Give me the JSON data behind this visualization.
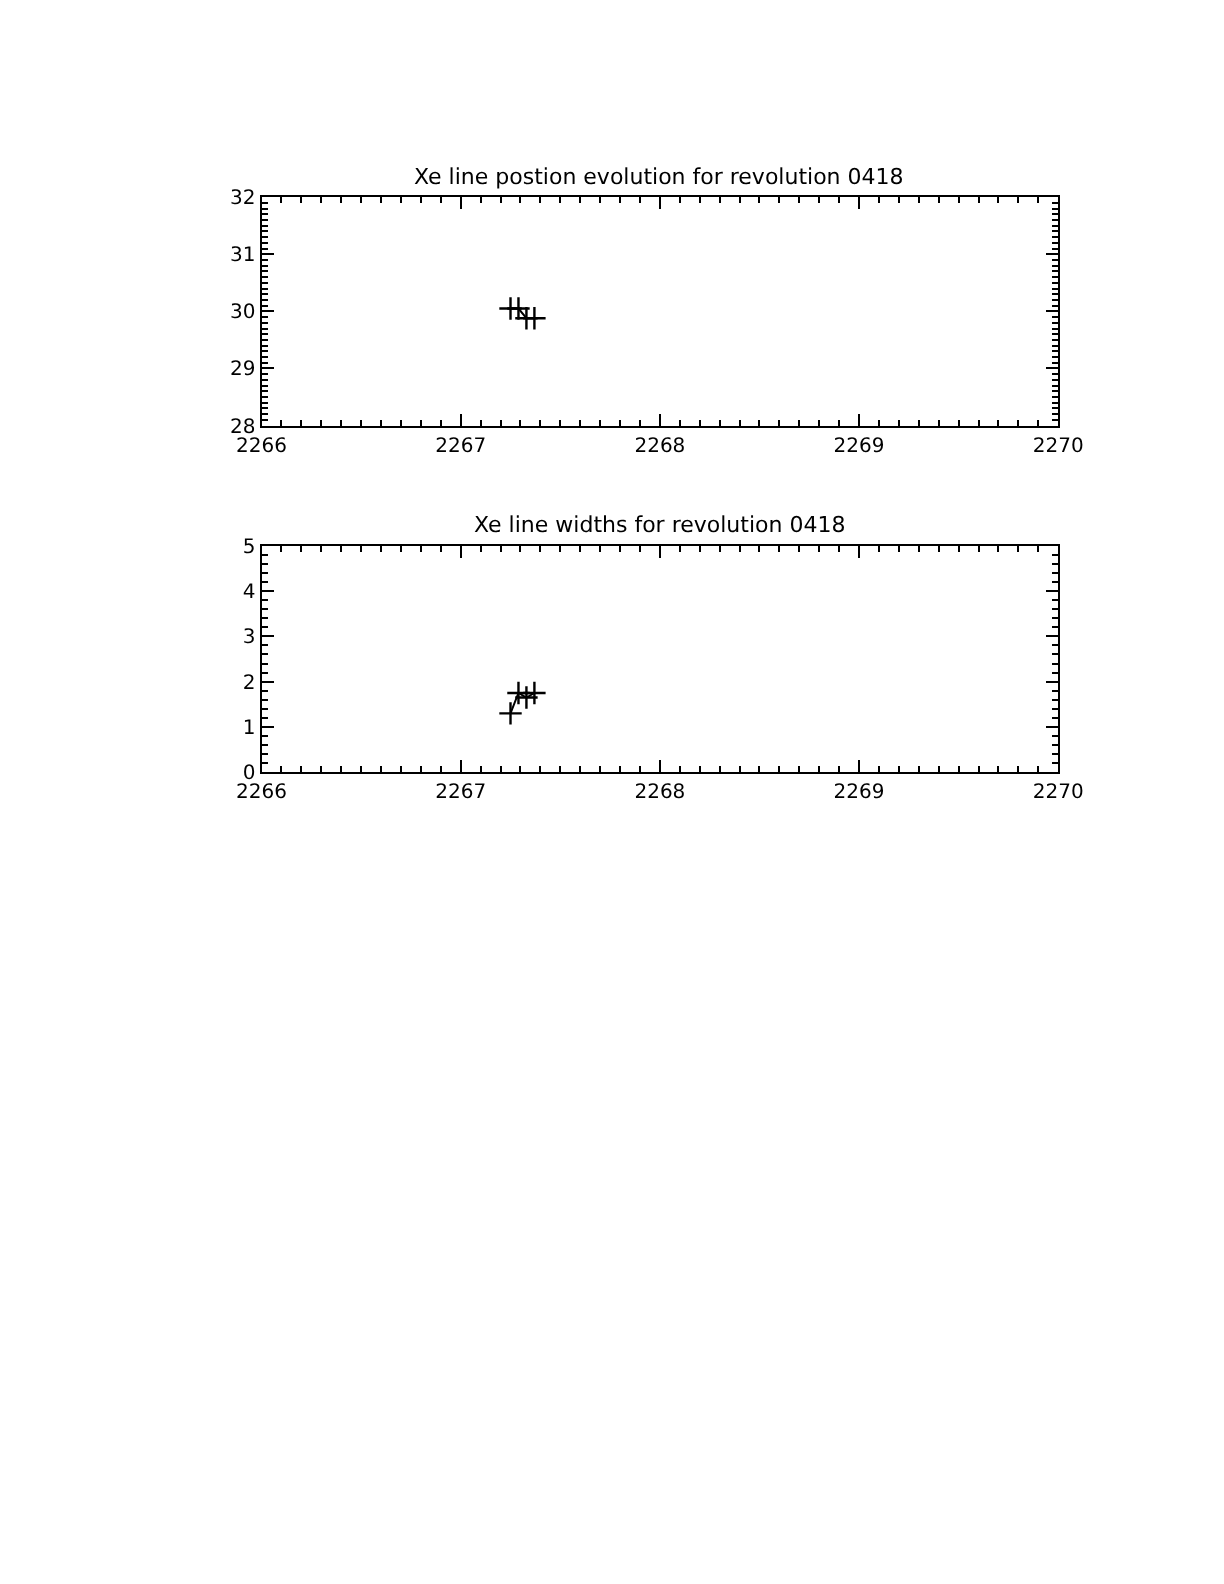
{
  "chart_data": [
    {
      "type": "line",
      "title": "Xe line postion evolution for revolution 0418",
      "x": [
        2267.25,
        2267.29,
        2267.33,
        2267.37
      ],
      "series": [
        {
          "color": "#000000",
          "values": [
            30.05,
            30.05,
            29.88,
            29.88
          ]
        }
      ],
      "xlim": [
        2266,
        2270
      ],
      "xticks": [
        2266,
        2267,
        2268,
        2269,
        2270
      ],
      "ylim": [
        28,
        32
      ],
      "yticks": [
        28,
        29,
        30,
        31,
        32
      ],
      "marker": "cross",
      "line_style": "solid"
    },
    {
      "type": "line",
      "title": "Xe line widths for revolution 0418",
      "x": [
        2267.25,
        2267.29,
        2267.33,
        2267.37
      ],
      "series": [
        {
          "color": "#000000",
          "values": [
            1.3,
            1.75,
            1.65,
            1.75
          ]
        }
      ],
      "xlim": [
        2266,
        2270
      ],
      "xticks": [
        2266,
        2267,
        2268,
        2269,
        2270
      ],
      "ylim": [
        0,
        5
      ],
      "yticks": [
        0,
        1,
        2,
        3,
        4,
        5
      ],
      "marker": "cross",
      "line_style": "solid"
    }
  ]
}
